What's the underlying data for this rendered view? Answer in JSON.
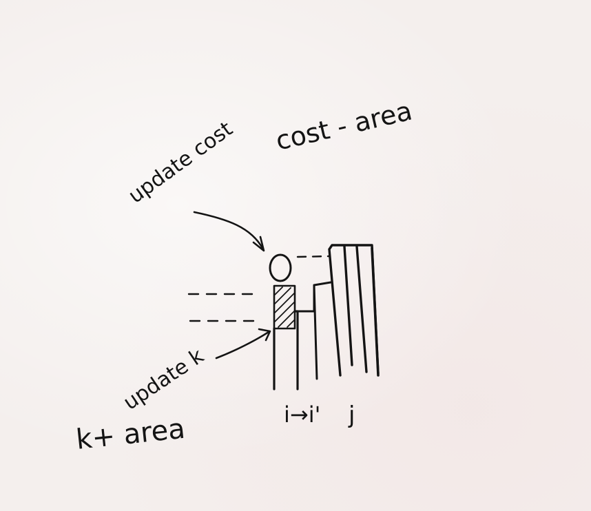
{
  "labels": {
    "update_cost": "update cost",
    "cost_minus_area": "cost - area",
    "update_k": "update k",
    "k_plus_area": "k+ area",
    "i_to_i_prime": "i→i'",
    "j": "j"
  },
  "colors": {
    "ink": "#141414",
    "paper": "#f4efed"
  }
}
